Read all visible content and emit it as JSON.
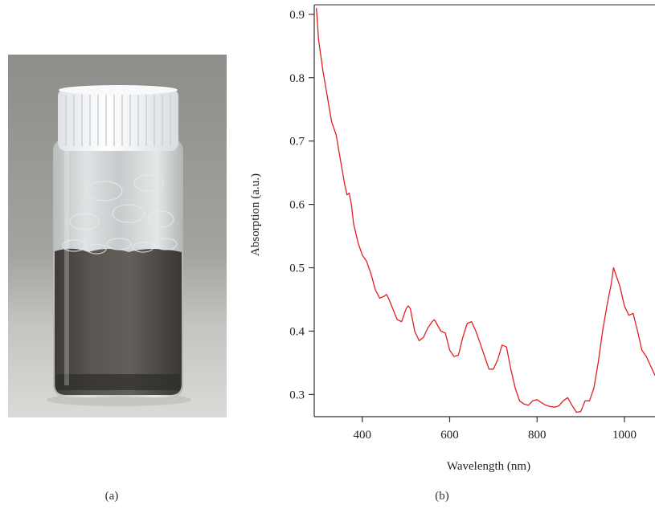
{
  "panels": {
    "a_label": "(a)",
    "b_label": "(b)"
  },
  "photo": {
    "background": "#9a9a96",
    "liquid_color": "#4a4744",
    "cap_color": "#f4f6f8"
  },
  "chart_data": {
    "type": "line",
    "xlabel": "Wavelength (nm)",
    "ylabel": "Absorption (a.u.)",
    "xlim": [
      290,
      1070
    ],
    "ylim": [
      0.265,
      0.915
    ],
    "xticks": [
      400,
      600,
      800,
      1000
    ],
    "yticks": [
      0.3,
      0.4,
      0.5,
      0.6,
      0.7,
      0.8,
      0.9
    ],
    "grid": false,
    "series": [
      {
        "color": "#e02020",
        "x": [
          295,
          300,
          310,
          320,
          330,
          340,
          350,
          360,
          365,
          370,
          375,
          380,
          390,
          400,
          410,
          420,
          430,
          440,
          450,
          455,
          460,
          470,
          480,
          490,
          500,
          505,
          510,
          520,
          530,
          540,
          550,
          560,
          565,
          570,
          580,
          590,
          600,
          610,
          620,
          630,
          640,
          650,
          660,
          670,
          680,
          690,
          700,
          710,
          720,
          730,
          740,
          750,
          760,
          770,
          780,
          790,
          800,
          810,
          820,
          830,
          840,
          850,
          860,
          870,
          880,
          890,
          900,
          910,
          920,
          930,
          940,
          950,
          960,
          970,
          975,
          980,
          990,
          1000,
          1010,
          1020,
          1030,
          1040,
          1050,
          1060,
          1070
        ],
        "y": [
          0.91,
          0.86,
          0.81,
          0.77,
          0.73,
          0.71,
          0.67,
          0.63,
          0.615,
          0.618,
          0.6,
          0.57,
          0.54,
          0.52,
          0.51,
          0.49,
          0.465,
          0.452,
          0.455,
          0.458,
          0.452,
          0.435,
          0.418,
          0.415,
          0.435,
          0.44,
          0.435,
          0.4,
          0.385,
          0.39,
          0.405,
          0.415,
          0.418,
          0.412,
          0.4,
          0.397,
          0.37,
          0.36,
          0.362,
          0.39,
          0.412,
          0.415,
          0.4,
          0.38,
          0.36,
          0.34,
          0.34,
          0.355,
          0.378,
          0.375,
          0.34,
          0.31,
          0.29,
          0.285,
          0.283,
          0.29,
          0.292,
          0.287,
          0.283,
          0.281,
          0.28,
          0.282,
          0.29,
          0.295,
          0.283,
          0.272,
          0.273,
          0.29,
          0.29,
          0.31,
          0.35,
          0.4,
          0.44,
          0.475,
          0.5,
          0.49,
          0.47,
          0.44,
          0.425,
          0.428,
          0.4,
          0.37,
          0.36,
          0.345,
          0.33
        ]
      }
    ]
  }
}
